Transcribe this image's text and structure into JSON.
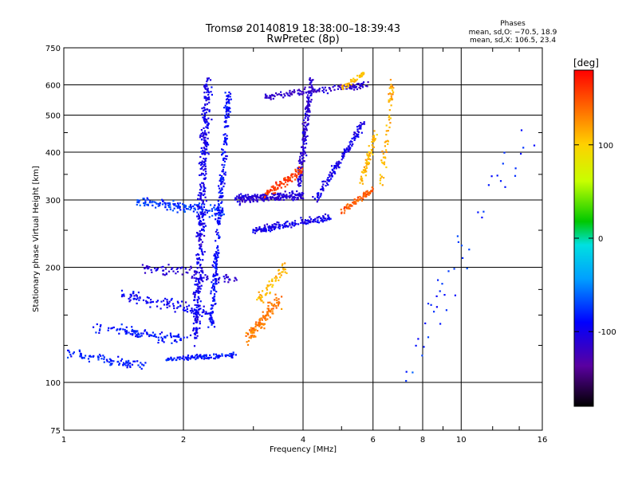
{
  "chart_data": {
    "type": "scatter",
    "title": "Tromsø 20140819 18:38:00–18:39:43",
    "subtitle": "RwPretec (8p)",
    "xlabel": "Frequency [MHz]",
    "ylabel": "Stationary phase Virtual Height [km]",
    "xscale": "log",
    "yscale": "log",
    "xlim": [
      1,
      16
    ],
    "ylim": [
      75,
      750
    ],
    "x_ticks": [
      1,
      2,
      4,
      6,
      8,
      10,
      16
    ],
    "y_ticks": [
      75,
      100,
      200,
      300,
      400,
      500,
      600,
      750
    ],
    "grid": true,
    "stats": {
      "heading": "Phases",
      "line_o": "mean, sd,O: −70.5, 18.9",
      "line_x": "mean, sd,X: 106.5, 23.4"
    },
    "colorbar": {
      "label": "[deg]",
      "range": [
        -180,
        180
      ],
      "ticks": [
        100,
        0,
        -100
      ]
    },
    "series": [
      {
        "x": [
          1.0,
          1.6
        ],
        "y": [
          120,
          110
        ],
        "phase": -80,
        "spread": 0.04,
        "n": 90
      },
      {
        "x": [
          1.2,
          2.0
        ],
        "y": [
          140,
          130
        ],
        "phase": -85,
        "spread": 0.05,
        "n": 110
      },
      {
        "x": [
          1.4,
          2.4
        ],
        "y": [
          170,
          150
        ],
        "phase": -95,
        "spread": 0.05,
        "n": 110
      },
      {
        "x": [
          1.6,
          2.7
        ],
        "y": [
          200,
          185
        ],
        "phase": -110,
        "spread": 0.05,
        "n": 90
      },
      {
        "x": [
          1.5,
          2.5
        ],
        "y": [
          300,
          280
        ],
        "phase": -75,
        "spread": 0.05,
        "n": 140
      },
      {
        "x": [
          1.8,
          2.7
        ],
        "y": [
          115,
          118
        ],
        "phase": -85,
        "spread": 0.02,
        "n": 110
      },
      {
        "x": [
          2.15,
          2.3
        ],
        "y": [
          130,
          620
        ],
        "phase": -100,
        "spread": 0.06,
        "n": 420
      },
      {
        "x": [
          2.35,
          2.6
        ],
        "y": [
          140,
          580
        ],
        "phase": -90,
        "spread": 0.04,
        "n": 280
      },
      {
        "x": [
          2.7,
          4.0
        ],
        "y": [
          300,
          310
        ],
        "phase": -110,
        "spread": 0.04,
        "n": 220
      },
      {
        "x": [
          3.0,
          4.7
        ],
        "y": [
          250,
          270
        ],
        "phase": -100,
        "spread": 0.03,
        "n": 180
      },
      {
        "x": [
          3.9,
          4.2
        ],
        "y": [
          330,
          620
        ],
        "phase": -110,
        "spread": 0.04,
        "n": 180
      },
      {
        "x": [
          4.3,
          5.7
        ],
        "y": [
          300,
          480
        ],
        "phase": -100,
        "spread": 0.04,
        "n": 150
      },
      {
        "x": [
          3.2,
          5.8
        ],
        "y": [
          560,
          600
        ],
        "phase": -115,
        "spread": 0.03,
        "n": 150
      },
      {
        "x": [
          5.0,
          5.7
        ],
        "y": [
          590,
          640
        ],
        "phase": 110,
        "spread": 0.03,
        "n": 45
      },
      {
        "x": [
          5.0,
          6.0
        ],
        "y": [
          280,
          320
        ],
        "phase": 145,
        "spread": 0.03,
        "n": 80
      },
      {
        "x": [
          5.6,
          6.1
        ],
        "y": [
          330,
          450
        ],
        "phase": 110,
        "spread": 0.04,
        "n": 70
      },
      {
        "x": [
          6.3,
          6.7
        ],
        "y": [
          330,
          600
        ],
        "phase": 115,
        "spread": 0.04,
        "n": 60
      },
      {
        "x": [
          3.2,
          4.0
        ],
        "y": [
          310,
          360
        ],
        "phase": 160,
        "spread": 0.04,
        "n": 90
      },
      {
        "x": [
          2.9,
          3.5
        ],
        "y": [
          130,
          165
        ],
        "phase": 135,
        "spread": 0.06,
        "n": 120
      },
      {
        "x": [
          3.1,
          3.6
        ],
        "y": [
          165,
          200
        ],
        "phase": 110,
        "spread": 0.05,
        "n": 60
      },
      {
        "x": [
          7.0,
          15.0
        ],
        "y": [
          100,
          500
        ],
        "phase": -80,
        "spread": 0.15,
        "n": 45
      }
    ]
  }
}
